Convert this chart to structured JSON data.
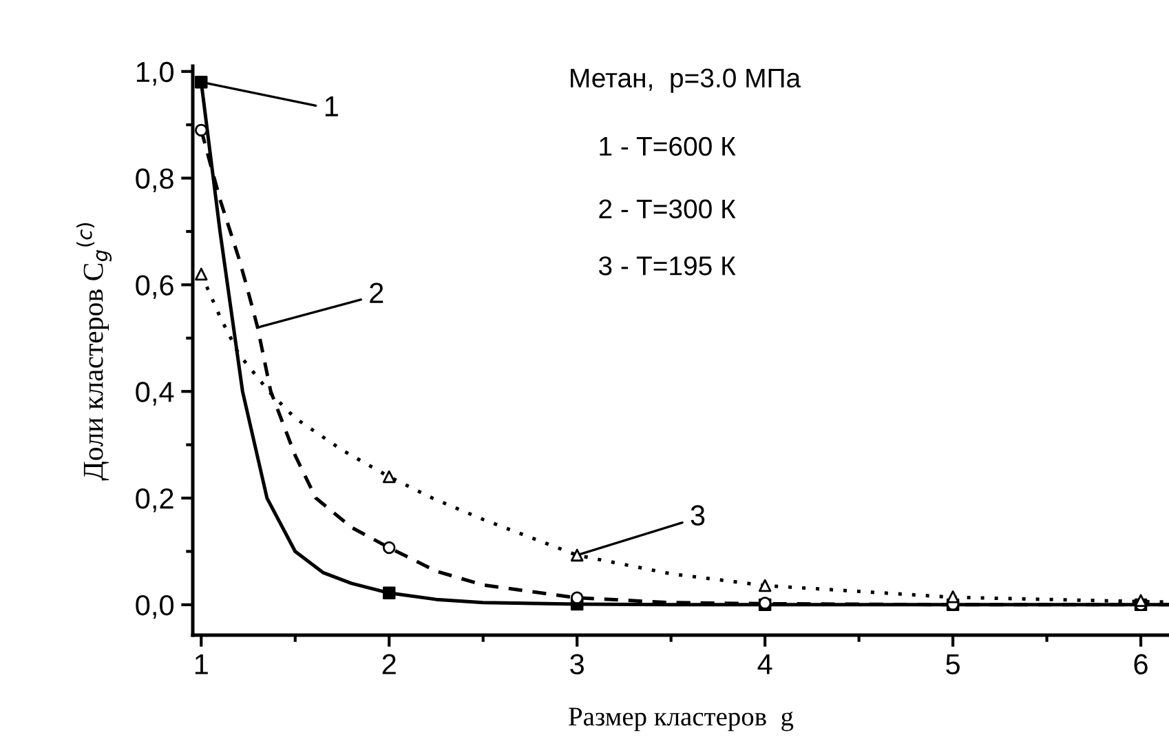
{
  "chart_data": {
    "type": "line",
    "xlabel": "Размер кластеров  g",
    "ylabel": "Доли кластеров C$_{g}$$^{(c)}$",
    "xlim": [
      0.955,
      6.15
    ],
    "ylim": [
      -0.057,
      1.01
    ],
    "xticks": [
      1,
      2,
      3,
      4,
      5,
      6
    ],
    "yticks": [
      {
        "value": 0.0,
        "label": "0,0"
      },
      {
        "value": 0.2,
        "label": "0,2"
      },
      {
        "value": 0.4,
        "label": "0,4"
      },
      {
        "value": 0.6,
        "label": "0,6"
      },
      {
        "value": 0.8,
        "label": "0,8"
      },
      {
        "value": 1.0,
        "label": "1,0"
      }
    ],
    "grid": false,
    "legend": false,
    "series": [
      {
        "type": "line",
        "color": "#000000",
        "line_style": "solid",
        "marker": "none",
        "x": [
          1,
          1.1,
          1.22,
          1.35,
          1.5,
          1.65,
          1.8,
          2,
          2.25,
          2.5,
          3,
          3.5,
          4,
          5,
          6,
          6.15
        ],
        "values": [
          0.98,
          0.7,
          0.4,
          0.2,
          0.1,
          0.06,
          0.04,
          0.022,
          0.01,
          0.004,
          0.001,
          0,
          0,
          0,
          0,
          0
        ]
      },
      {
        "type": "line",
        "color": "#000000",
        "line_style": "dashed",
        "marker": "none",
        "x": [
          1,
          1.1,
          1.2,
          1.24,
          1.3,
          1.37,
          1.5,
          1.61,
          1.8,
          2,
          2.25,
          2.5,
          3,
          3.5,
          4,
          5,
          6,
          6.15
        ],
        "values": [
          0.89,
          0.76,
          0.65,
          0.6,
          0.52,
          0.4,
          0.28,
          0.2,
          0.145,
          0.107,
          0.063,
          0.037,
          0.013,
          0.004,
          0.002,
          0,
          0,
          0
        ]
      },
      {
        "type": "line",
        "color": "#000000",
        "line_style": "dotted",
        "marker": "none",
        "x": [
          1,
          1.1,
          1.2,
          1.36,
          1.5,
          1.75,
          2,
          2.23,
          2.5,
          3,
          3.5,
          4,
          5,
          6,
          6.15
        ],
        "values": [
          0.62,
          0.54,
          0.47,
          0.4,
          0.35,
          0.29,
          0.24,
          0.2,
          0.16,
          0.093,
          0.058,
          0.036,
          0.014,
          0.006,
          0.005
        ]
      },
      {
        "type": "scatter",
        "color": "#000000",
        "marker": "square",
        "x": [
          1,
          2,
          3,
          4,
          5,
          6
        ],
        "values": [
          0.98,
          0.022,
          0.001,
          0,
          0,
          0
        ]
      },
      {
        "type": "scatter",
        "color": "#000000",
        "marker": "circle",
        "x": [
          1,
          2,
          3,
          4,
          5,
          6
        ],
        "values": [
          0.89,
          0.107,
          0.013,
          0.003,
          0.001,
          0
        ]
      },
      {
        "type": "scatter",
        "color": "#000000",
        "marker": "triangle",
        "x": [
          1,
          2,
          3,
          4,
          5,
          6
        ],
        "values": [
          0.62,
          0.24,
          0.093,
          0.036,
          0.015,
          0.008
        ]
      }
    ],
    "annotations": [
      {
        "text": "1",
        "x": 1.0,
        "y": 0.98
      },
      {
        "text": "2",
        "x": 1.3,
        "y": 0.52
      },
      {
        "text": "3",
        "x": 3.0,
        "y": 0.093
      },
      "Метан,  p=3.0 МПа",
      "1 - T=600 К",
      "2 - T=300 К",
      "3 - T=195 К"
    ]
  }
}
